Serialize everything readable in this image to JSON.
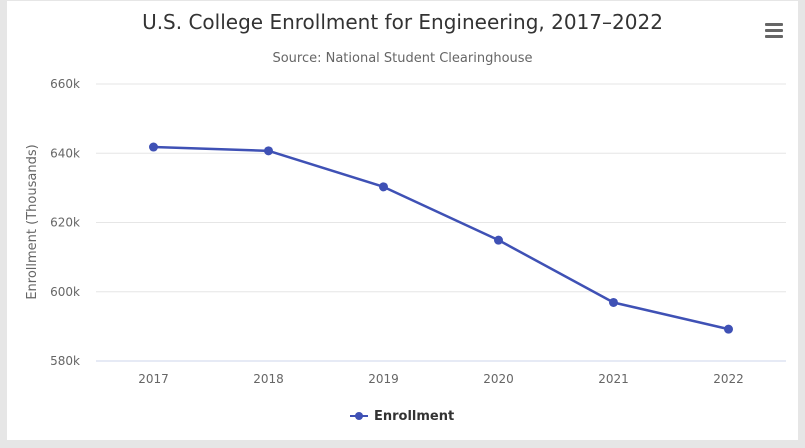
{
  "chart_data": {
    "type": "line",
    "title": "U.S. College Enrollment for Engineering, 2017–2022",
    "subtitle": "Source: National Student Clearinghouse",
    "xlabel": "",
    "ylabel": "Enrollment (Thousands)",
    "categories": [
      "2017",
      "2018",
      "2019",
      "2020",
      "2021",
      "2022"
    ],
    "series": [
      {
        "name": "Enrollment",
        "values": [
          641.8,
          640.7,
          630.3,
          614.9,
          596.9,
          589.2
        ],
        "color": "#3f51b5"
      }
    ],
    "ylim": [
      580,
      660
    ],
    "yticks": [
      {
        "value": 580,
        "label": "580k"
      },
      {
        "value": 600,
        "label": "600k"
      },
      {
        "value": 620,
        "label": "620k"
      },
      {
        "value": 640,
        "label": "640k"
      },
      {
        "value": 660,
        "label": "660k"
      }
    ],
    "grid": true,
    "legend_position": "bottom-center"
  },
  "menu": {
    "icon": "hamburger-menu-icon"
  }
}
